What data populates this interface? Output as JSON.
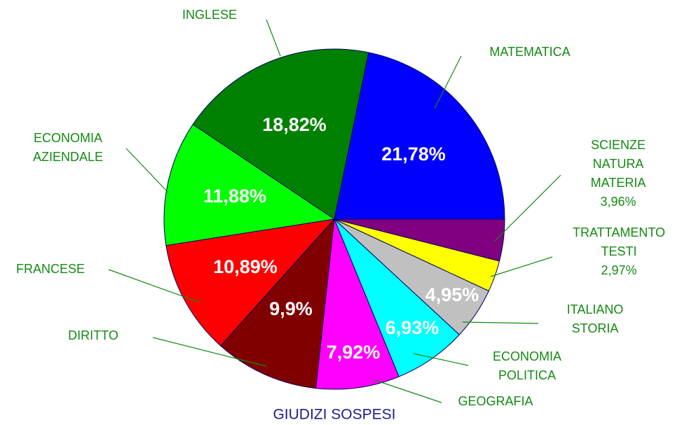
{
  "chart_data": {
    "type": "pie",
    "title": "GIUDIZI SOSPESI",
    "categories": [
      "MATEMATICA",
      "INGLESE",
      "ECONOMIA\nAZIENDALE",
      "FRANCESE",
      "DIRITTO",
      "GEOGRAFIA",
      "ECONOMIA\nPOLITICA",
      "ITALIANO\nSTORIA",
      "TRATTAMENTO\nTESTI",
      "SCIENZE\nNATURA\nMATERIA"
    ],
    "values": [
      21.78,
      18.82,
      11.88,
      10.89,
      9.9,
      7.92,
      6.93,
      4.95,
      2.97,
      3.96
    ],
    "value_labels": [
      "21,78%",
      "18,82%",
      "11,88%",
      "10,89%",
      "9,9%",
      "7,92%",
      "6,93%",
      "4,95%",
      "2,97%",
      "3,96%"
    ],
    "colors": [
      "#0000ff",
      "#008000",
      "#00ff00",
      "#ff0000",
      "#800000",
      "#ff00ff",
      "#00ffff",
      "#c0c0c0",
      "#ffff00",
      "#800080"
    ]
  }
}
